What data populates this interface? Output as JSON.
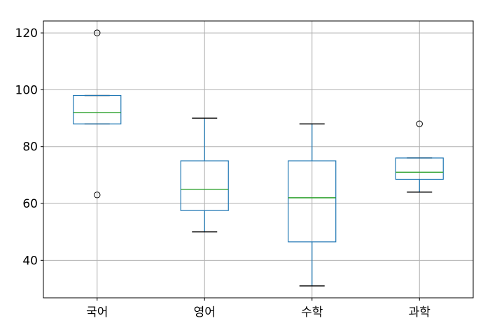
{
  "chart_data": {
    "type": "boxplot",
    "title": "",
    "xlabel": "",
    "ylabel": "",
    "categories": [
      "국어",
      "영어",
      "수학",
      "과학"
    ],
    "ylim": [
      26.8,
      124.2
    ],
    "yticks": [
      40,
      60,
      80,
      100,
      120
    ],
    "ytick_labels": [
      "40",
      "60",
      "80",
      "100",
      "120"
    ],
    "grid": true,
    "legend": "none",
    "boxes": [
      {
        "category": "국어",
        "whisker_low": 88,
        "q1": 88,
        "median": 92,
        "q3": 98,
        "whisker_high": 98,
        "outliers": [
          120,
          63
        ]
      },
      {
        "category": "영어",
        "whisker_low": 50,
        "q1": 57.5,
        "median": 65,
        "q3": 75,
        "whisker_high": 90,
        "outliers": []
      },
      {
        "category": "수학",
        "whisker_low": 31,
        "q1": 46.5,
        "median": 62,
        "q3": 75,
        "whisker_high": 88,
        "outliers": []
      },
      {
        "category": "과학",
        "whisker_low": 64,
        "q1": 68.5,
        "median": 71,
        "q3": 76,
        "whisker_high": 76,
        "outliers": [
          88
        ]
      }
    ],
    "colors": {
      "box": "#1f77b4",
      "median": "#2ca02c",
      "whisker_cap": "#000000",
      "grid": "#b0b0b0",
      "axes": "#000000"
    }
  }
}
